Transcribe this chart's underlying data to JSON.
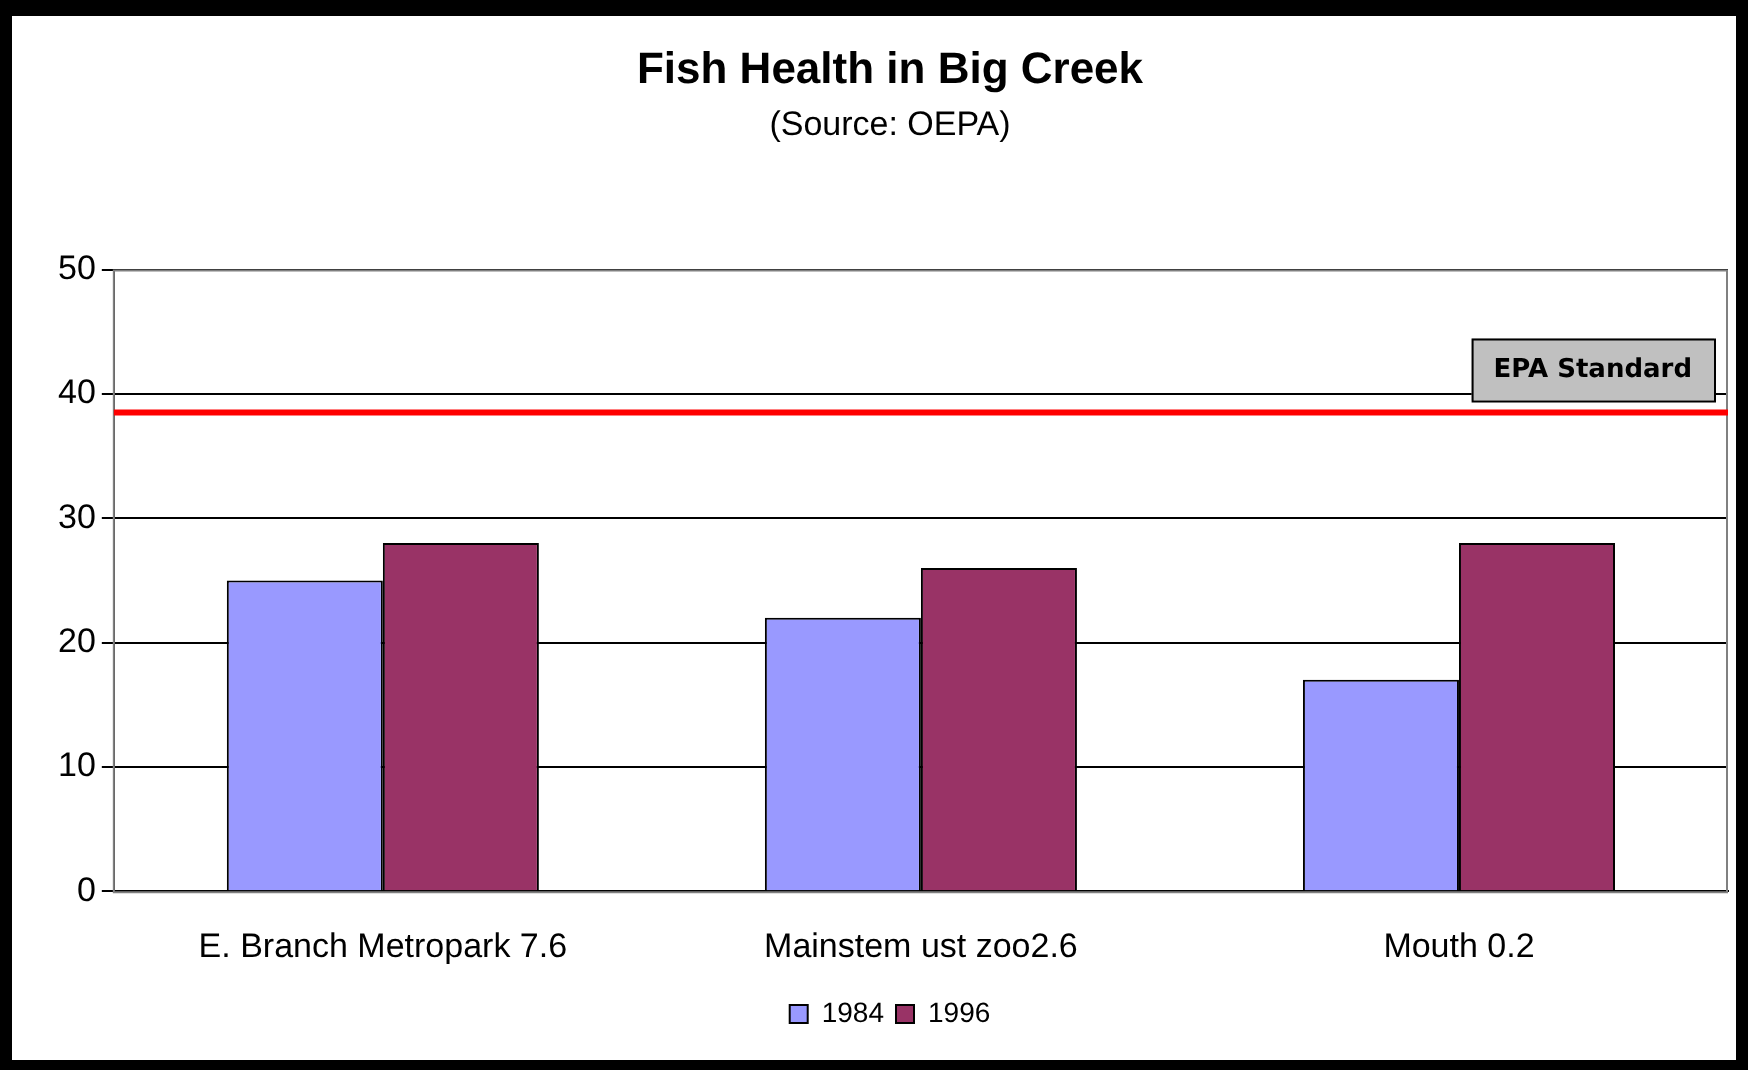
{
  "chart_data": {
    "type": "bar",
    "title": "Fish Health in Big Creek",
    "subtitle": "(Source: OEPA)",
    "categories": [
      "E. Branch Metropark 7.6",
      "Mainstem ust zoo2.6",
      "Mouth 0.2"
    ],
    "series": [
      {
        "name": "1984",
        "color": "#9999ff",
        "values": [
          25,
          22,
          17
        ]
      },
      {
        "name": "1996",
        "color": "#993366",
        "values": [
          28,
          26,
          28
        ]
      }
    ],
    "ylim": [
      0,
      50
    ],
    "yticks": [
      0,
      10,
      20,
      30,
      40,
      50
    ],
    "grid": "y",
    "legend": "bottom",
    "ref_lines": [
      {
        "axis": "y",
        "value": 38.5,
        "label": "EPA Standard",
        "color": "#ff0000"
      }
    ]
  }
}
